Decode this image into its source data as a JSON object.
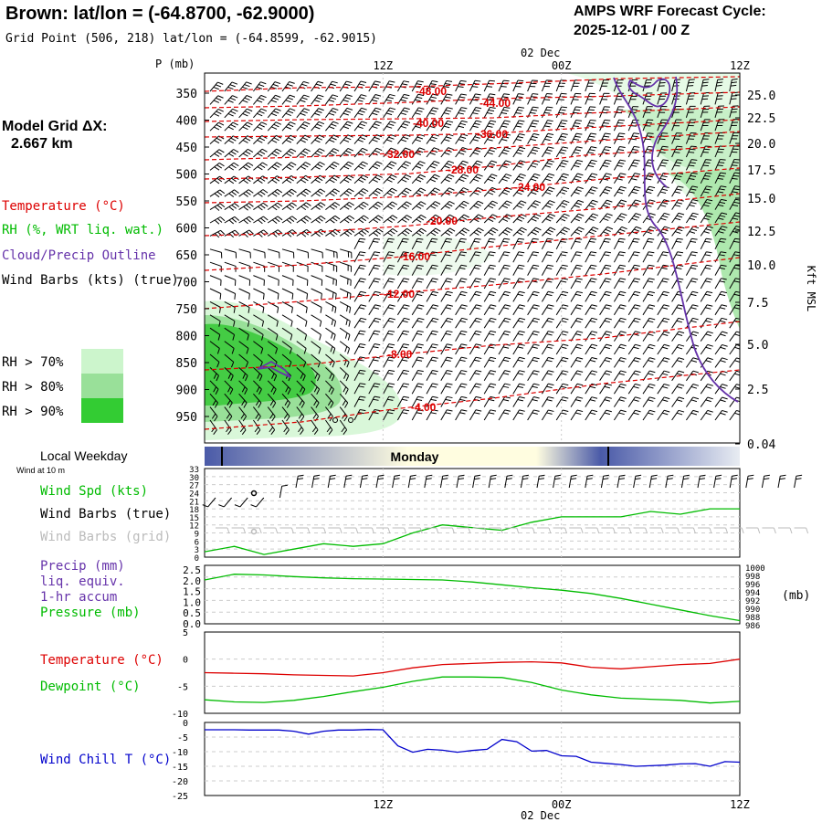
{
  "header": {
    "station_title": "Brown:  lat/lon = (-64.8700, -62.9000)",
    "grid_point": "Grid Point (506, 218) lat/lon = (-64.8599, -62.9015)",
    "forecast_title": "AMPS WRF Forecast Cycle:",
    "forecast_cycle": "2025-12-01 / 00  Z"
  },
  "sidebar": {
    "model_grid_label": "Model Grid ΔX:",
    "model_grid_value": "2.667 km",
    "legend_temperature": "Temperature (°C)",
    "legend_rh": "RH (%, WRT liq. wat.)",
    "legend_cloud": "Cloud/Precip Outline",
    "legend_wind": "Wind Barbs (kts) (true)",
    "rh_levels": [
      {
        "label": "RH > 70%",
        "color": "#ccf5cc"
      },
      {
        "label": "RH > 80%",
        "color": "#99e099"
      },
      {
        "label": "RH > 90%",
        "color": "#33cc33"
      }
    ],
    "local_weekday": "Local Weekday",
    "wind_at_10m": "Wind at 10 m",
    "wind_speed": "Wind Spd (kts)",
    "wind_barbs_true": "Wind Barbs (true)",
    "wind_barbs_grid": "Wind Barbs (grid)",
    "precip": "Precip (mm)",
    "liq_equiv": "liq. equiv.",
    "accum": "1-hr accum",
    "pressure": "Pressure (mb)",
    "temperature": "Temperature (°C)",
    "dewpoint": "Dewpoint (°C)",
    "wind_chill": "Wind Chill T (°C)"
  },
  "colors": {
    "temperature": "#dd0000",
    "dewpoint": "#00bb00",
    "wind_speed": "#00bb00",
    "pressure": "#00bb00",
    "wind_chill": "#0000cc",
    "cloud_outline": "#6633aa",
    "day_bar_dark": "#4a5aa8",
    "day_bar_light": "#fffde0"
  },
  "chart_data": [
    {
      "id": "cross-section",
      "type": "heatmap",
      "x_range_hours": [
        0,
        36
      ],
      "time_ticks": [
        {
          "hour": 12,
          "label": "12Z"
        },
        {
          "hour": 24,
          "label": "00Z"
        },
        {
          "hour": 36,
          "label": "12Z"
        }
      ],
      "date_label": "02 Dec",
      "p_axis_title": "P (mb)",
      "pressure_ticks": [
        350,
        400,
        450,
        500,
        550,
        600,
        650,
        700,
        750,
        800,
        850,
        900,
        950
      ],
      "height_ticks": [
        "25.0",
        "22.5",
        "20.0",
        "17.5",
        "15.0",
        "12.5",
        "10.0",
        "7.5",
        "5.0",
        "2.5",
        "0.04"
      ],
      "height_axis_title": "Kft MSL",
      "temperature_isotherms": [
        "-48.00",
        "-44.00",
        "-40.00",
        "-36.00",
        "-32.00",
        "-28.00",
        "-24.00",
        "-20.00",
        "-16.00",
        "-12.00",
        "-8.00",
        "-4.00"
      ]
    },
    {
      "id": "weekday-bar",
      "type": "table",
      "day_label": "Monday"
    },
    {
      "id": "wind",
      "type": "line",
      "y_ticks": [
        "33",
        "30",
        "27",
        "24",
        "21",
        "18",
        "15",
        "12",
        "9",
        "6",
        "3",
        "0"
      ],
      "ylim": [
        0,
        33
      ],
      "series": [
        {
          "name": "Wind Spd (kts)",
          "x": [
            0,
            2,
            4,
            6,
            8,
            10,
            12,
            14,
            16,
            18,
            20,
            22,
            24,
            26,
            28,
            30,
            32,
            34,
            36
          ],
          "values": [
            2,
            4,
            1,
            3,
            5,
            4,
            5,
            9,
            12,
            11,
            10,
            13,
            15,
            15,
            15,
            17,
            16,
            18,
            18
          ]
        }
      ]
    },
    {
      "id": "precip-pressure",
      "type": "line",
      "y_left_ticks": [
        "2.5",
        "2.0",
        "1.5",
        "1.0",
        "0.5",
        "0.0"
      ],
      "y_right_ticks": [
        "1000",
        "998",
        "996",
        "994",
        "992",
        "990",
        "988",
        "986"
      ],
      "y_right_title": "(mb)",
      "series": [
        {
          "name": "Pressure (mb)",
          "x": [
            0,
            2,
            4,
            6,
            8,
            10,
            12,
            14,
            16,
            18,
            20,
            22,
            24,
            26,
            28,
            30,
            32,
            34,
            36
          ],
          "values": [
            996.9,
            998.3,
            998.1,
            997.7,
            997.4,
            997.2,
            997.1,
            997.0,
            996.9,
            996.4,
            995.7,
            995.0,
            994.4,
            993.6,
            992.4,
            991.0,
            989.6,
            988.2,
            987.0
          ]
        }
      ]
    },
    {
      "id": "temp-dewpoint",
      "type": "line",
      "y_ticks": [
        "5",
        "0",
        "-5",
        "-10"
      ],
      "ylim": [
        -10,
        5
      ],
      "series": [
        {
          "name": "Temperature",
          "x": [
            0,
            2,
            4,
            6,
            8,
            10,
            12,
            14,
            16,
            18,
            20,
            22,
            24,
            26,
            28,
            30,
            32,
            34,
            36
          ],
          "values": [
            -2.5,
            -2.6,
            -2.7,
            -2.9,
            -3.0,
            -3.1,
            -2.5,
            -1.6,
            -1.0,
            -0.8,
            -0.6,
            -0.5,
            -0.7,
            -1.5,
            -1.8,
            -1.4,
            -1.0,
            -0.8,
            0.0
          ]
        },
        {
          "name": "Dewpoint",
          "x": [
            0,
            2,
            4,
            6,
            8,
            10,
            12,
            14,
            16,
            18,
            20,
            22,
            24,
            26,
            28,
            30,
            32,
            34,
            36
          ],
          "values": [
            -7.5,
            -7.9,
            -8.0,
            -7.6,
            -6.9,
            -6.0,
            -5.2,
            -4.1,
            -3.3,
            -3.3,
            -3.4,
            -4.3,
            -5.7,
            -6.6,
            -7.2,
            -7.4,
            -7.6,
            -8.1,
            -7.8
          ]
        }
      ]
    },
    {
      "id": "wind-chill",
      "type": "line",
      "y_ticks": [
        "0",
        "-5",
        "-10",
        "-15",
        "-20",
        "-25"
      ],
      "ylim": [
        -25,
        0
      ],
      "series": [
        {
          "name": "Wind Chill T",
          "x": [
            0,
            1,
            2,
            3,
            4,
            5,
            6,
            7,
            8,
            9,
            10,
            11,
            12,
            13,
            14,
            15,
            16,
            17,
            18,
            19,
            20,
            21,
            22,
            23,
            24,
            25,
            26,
            27,
            28,
            29,
            30,
            31,
            32,
            33,
            34,
            35,
            36
          ],
          "values": [
            -2.5,
            -2.5,
            -2.5,
            -2.6,
            -2.6,
            -2.6,
            -3.0,
            -4.0,
            -3.0,
            -2.6,
            -2.6,
            -2.4,
            -2.5,
            -8.0,
            -10.2,
            -9.2,
            -9.5,
            -10.2,
            -9.6,
            -9.2,
            -5.8,
            -6.6,
            -9.8,
            -9.6,
            -11.4,
            -11.6,
            -13.6,
            -14.0,
            -14.4,
            -15.0,
            -14.8,
            -14.6,
            -14.2,
            -14.1,
            -15.0,
            -13.4,
            -13.6
          ]
        }
      ]
    }
  ]
}
